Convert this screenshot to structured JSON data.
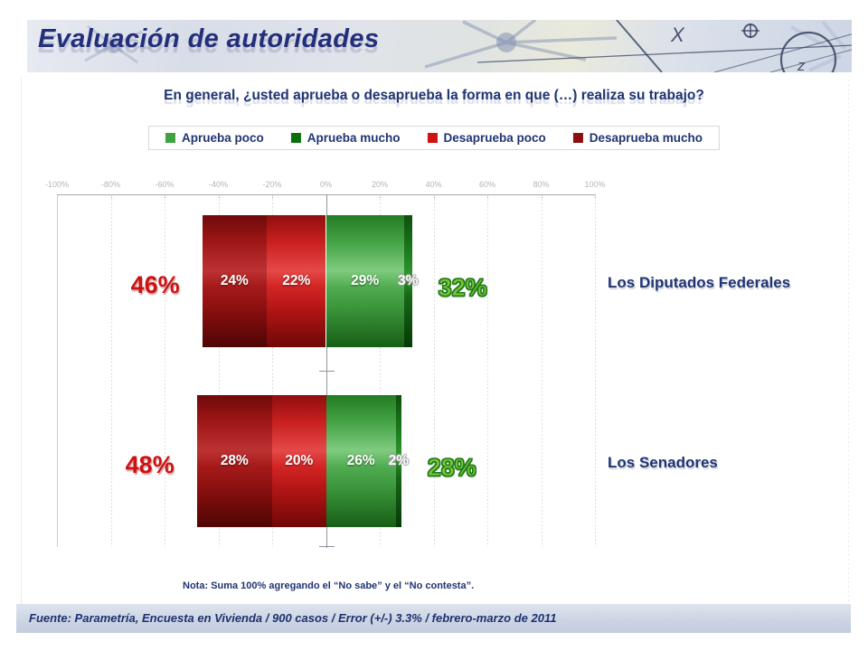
{
  "header": {
    "title": "Evaluación de autoridades"
  },
  "legend": [
    {
      "label": "Aprueba poco",
      "color": "#3FA23F"
    },
    {
      "label": "Aprueba mucho",
      "color": "#0B6F0B"
    },
    {
      "label": "Desaprueba poco",
      "color": "#CE1212"
    },
    {
      "label": "Desaprueba mucho",
      "color": "#8D0F0F"
    }
  ],
  "chart_data": {
    "type": "bar",
    "orientation": "horizontal-diverging",
    "title": "En general, ¿usted aprueba o desaprueba la forma en que (…) realiza su trabajo?",
    "categories": [
      "Los Diputados Federales",
      "Los Senadores"
    ],
    "series": [
      {
        "name": "Desaprueba mucho",
        "color": "#8D0F0F",
        "values": [
          24,
          28
        ]
      },
      {
        "name": "Desaprueba poco",
        "color": "#CE1212",
        "values": [
          22,
          20
        ]
      },
      {
        "name": "Aprueba poco",
        "color": "#3FA23F",
        "values": [
          29,
          26
        ]
      },
      {
        "name": "Aprueba mucho",
        "color": "#0B6F0B",
        "values": [
          3,
          2
        ]
      }
    ],
    "totals": {
      "disapprove": [
        "46%",
        "48%"
      ],
      "approve": [
        "32%",
        "28%"
      ]
    },
    "axis": {
      "min": -100,
      "max": 100,
      "step": 20,
      "tick_labels": [
        "-100%",
        "-80%",
        "-60%",
        "-40%",
        "-20%",
        "0%",
        "20%",
        "40%",
        "60%",
        "80%",
        "100%"
      ]
    },
    "legend_position": "top",
    "grid": true
  },
  "note": "Nota: Suma 100% agregando el “No sabe” y el “No contesta”.",
  "footer": "Fuente: Parametría, Encuesta en Vivienda / 900 casos / Error (+/-) 3.3% / febrero-marzo de 2011"
}
